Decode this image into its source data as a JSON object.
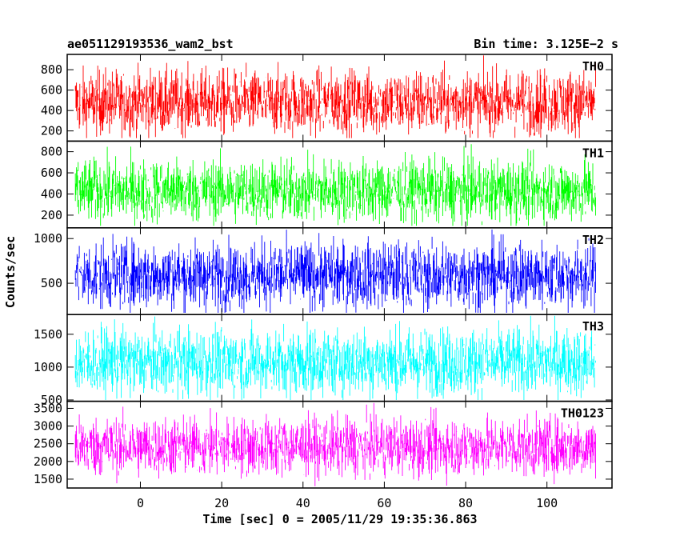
{
  "header": {
    "title": "ae051129193536_wam2_bst",
    "bin_time": "Bin time: 3.125E−2 s"
  },
  "chart_data": {
    "type": "line",
    "title": "ae051129193536_wam2_bst",
    "subtitle": "Bin time: 3.125E−2 s",
    "xlabel": "Time [sec] 0 = 2005/11/29 19:35:36.863",
    "ylabel": "Counts/sec",
    "xlim": [
      -18,
      116
    ],
    "x_ticks": [
      0,
      20,
      40,
      60,
      80,
      100
    ],
    "x_tick_labels": [
      "0",
      "20",
      "40",
      "60",
      "80",
      "100"
    ],
    "x_start": -16,
    "x_end": 112,
    "grid": false,
    "panels": [
      {
        "name": "TH0",
        "color": "#ff0000",
        "ylim": [
          100,
          950
        ],
        "y_ticks": [
          200,
          400,
          600,
          800
        ],
        "y_tick_labels": [
          "200",
          "400",
          "600",
          "800"
        ],
        "mean": 480,
        "spread": 160,
        "min": 130,
        "max": 950
      },
      {
        "name": "TH1",
        "color": "#00ff00",
        "ylim": [
          80,
          900
        ],
        "y_ticks": [
          200,
          400,
          600,
          800
        ],
        "y_tick_labels": [
          "200",
          "400",
          "600",
          "800"
        ],
        "mean": 430,
        "spread": 150,
        "min": 100,
        "max": 880
      },
      {
        "name": "TH2",
        "color": "#0000ff",
        "ylim": [
          150,
          1120
        ],
        "y_ticks": [
          500,
          1000
        ],
        "y_tick_labels": [
          "500",
          "1000"
        ],
        "mean": 590,
        "spread": 190,
        "min": 170,
        "max": 1120
      },
      {
        "name": "TH3",
        "color": "#00ffff",
        "ylim": [
          480,
          1800
        ],
        "y_ticks": [
          500,
          1000,
          1500
        ],
        "y_tick_labels": [
          "500",
          "1000",
          "1500"
        ],
        "mean": 1080,
        "spread": 260,
        "min": 500,
        "max": 1780
      },
      {
        "name": "TH0123",
        "color": "#ff00ff",
        "ylim": [
          1250,
          3700
        ],
        "y_ticks": [
          1500,
          2000,
          2500,
          3000,
          3500
        ],
        "y_tick_labels": [
          "1500",
          "2000",
          "2500",
          "3000",
          "3500"
        ],
        "mean": 2420,
        "spread": 420,
        "min": 1300,
        "max": 3650
      }
    ]
  }
}
